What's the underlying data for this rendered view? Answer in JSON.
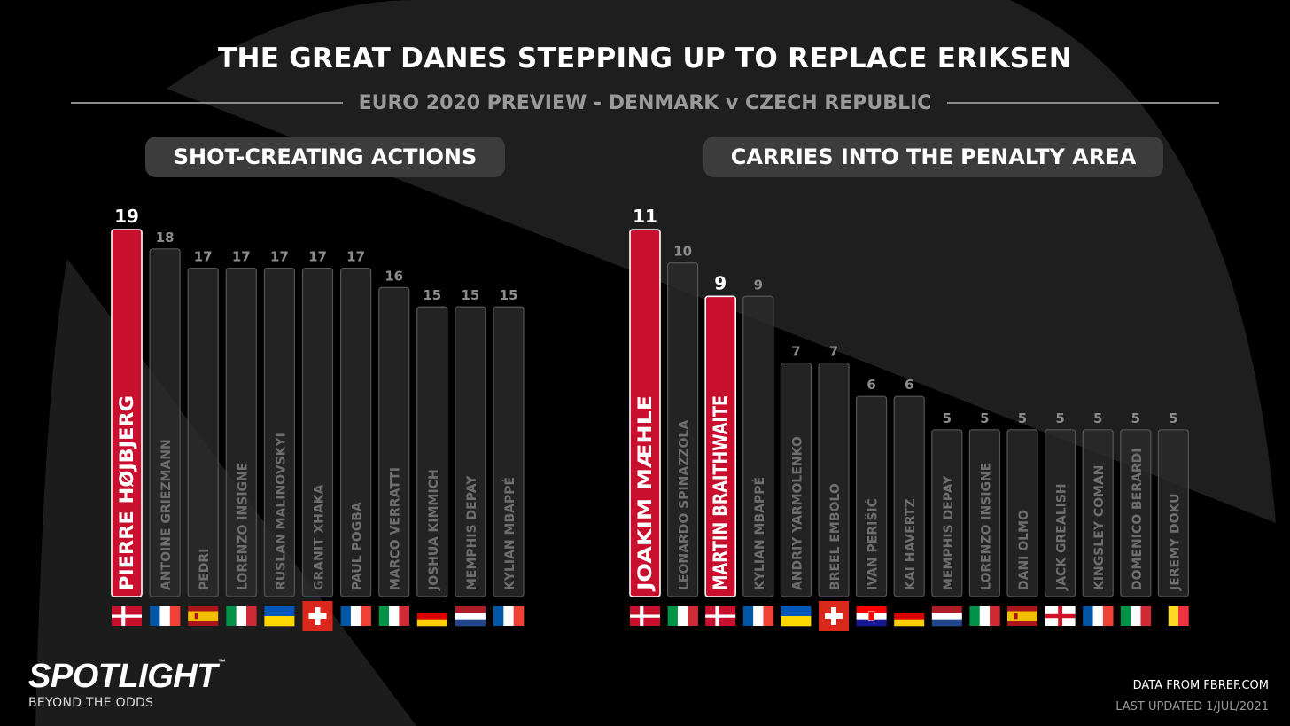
{
  "title": "THE GREAT DANES STEPPING UP TO REPLACE ERIKSEN",
  "subtitle": "EURO 2020 PREVIEW - DENMARK v CZECH REPUBLIC",
  "brand": {
    "name": "SPOTLIGHT",
    "tm": "™",
    "tagline": "BEYOND THE ODDS"
  },
  "footer": {
    "source": "DATA FROM FBREF.COM",
    "updated": "LAST UPDATED 1/JUL/2021"
  },
  "colors": {
    "highlight": "#c8102e",
    "bar": "#2b2b2b",
    "bar_stroke": "#555555",
    "value_dim": "#8c8c8c"
  },
  "chart_data": [
    {
      "type": "bar",
      "title": "SHOT-CREATING ACTIONS",
      "ylim": [
        0,
        19
      ],
      "categories": [
        "PIERRE HØJBJERG",
        "ANTOINE GRIEZMANN",
        "PEDRI",
        "LORENZO INSIGNE",
        "RUSLAN MALINOVSKYI",
        "GRANIT XHAKA",
        "PAUL POGBA",
        "MARCO VERRATTI",
        "JOSHUA KIMMICH",
        "MEMPHIS DEPAY",
        "KYLIAN MBAPPÉ"
      ],
      "values": [
        19,
        18,
        17,
        17,
        17,
        17,
        17,
        16,
        15,
        15,
        15
      ],
      "highlighted": [
        true,
        false,
        false,
        false,
        false,
        false,
        false,
        false,
        false,
        false,
        false
      ],
      "flags": [
        "denmark-flag",
        "france-flag",
        "spain-flag",
        "italy-flag",
        "ukraine-flag",
        "switzerland-flag",
        "france-flag",
        "italy-flag",
        "germany-flag",
        "netherlands-flag",
        "france-flag"
      ]
    },
    {
      "type": "bar",
      "title": "CARRIES INTO THE PENALTY AREA",
      "ylim": [
        0,
        11
      ],
      "categories": [
        "JOAKIM MÆHLE",
        "LEONARDO SPINAZZOLA",
        "MARTIN BRAITHWAITE",
        "KYLIAN MBAPPÉ",
        "ANDRIY YARMOLENKO",
        "BREEL EMBOLO",
        "IVAN PERIŠIĆ",
        "KAI HAVERTZ",
        "MEMPHIS DEPAY",
        "LORENZO INSIGNE",
        "DANI OLMO",
        "JACK GREALISH",
        "KINGSLEY COMAN",
        "DOMENICO BERARDI",
        "JEREMY DOKU"
      ],
      "values": [
        11,
        10,
        9,
        9,
        7,
        7,
        6,
        6,
        5,
        5,
        5,
        5,
        5,
        5,
        5
      ],
      "highlighted": [
        true,
        false,
        true,
        false,
        false,
        false,
        false,
        false,
        false,
        false,
        false,
        false,
        false,
        false,
        false
      ],
      "flags": [
        "denmark-flag",
        "italy-flag",
        "denmark-flag",
        "france-flag",
        "ukraine-flag",
        "switzerland-flag",
        "croatia-flag",
        "germany-flag",
        "netherlands-flag",
        "italy-flag",
        "spain-flag",
        "england-flag",
        "france-flag",
        "italy-flag",
        "belgium-flag"
      ]
    }
  ]
}
